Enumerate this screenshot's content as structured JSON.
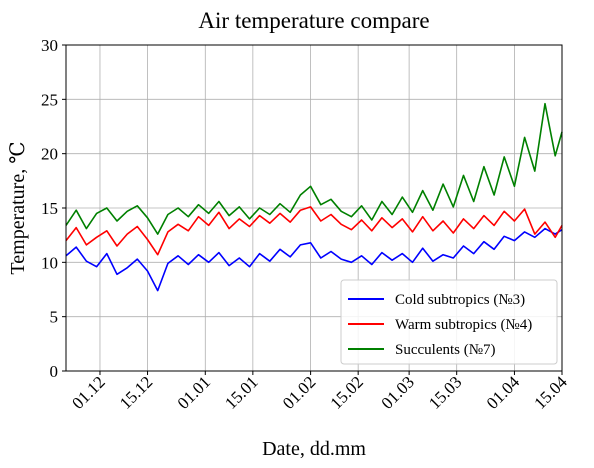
{
  "chart_data": {
    "type": "line",
    "title": "Air temperature compare",
    "xlabel": "Date, dd.mm",
    "ylabel": "Temperature, ℃",
    "x_start": "2023-11-21",
    "x_end": "2024-04-15",
    "xlim": [
      "2023-11-21",
      "2024-04-15"
    ],
    "ylim": [
      0,
      30
    ],
    "x_ticks": [
      {
        "date": "2023-12-01",
        "label": "01.12"
      },
      {
        "date": "2023-12-15",
        "label": "15.12"
      },
      {
        "date": "2024-01-01",
        "label": "01.01"
      },
      {
        "date": "2024-01-15",
        "label": "15.01"
      },
      {
        "date": "2024-02-01",
        "label": "01.02"
      },
      {
        "date": "2024-02-15",
        "label": "15.02"
      },
      {
        "date": "2024-03-01",
        "label": "01.03"
      },
      {
        "date": "2024-03-15",
        "label": "15.03"
      },
      {
        "date": "2024-04-01",
        "label": "01.04"
      },
      {
        "date": "2024-04-15",
        "label": "15.04"
      }
    ],
    "y_ticks": [
      0,
      5,
      10,
      15,
      20,
      25,
      30
    ],
    "grid": true,
    "legend_position": "bottom-right",
    "series": [
      {
        "name": "Cold subtropics (№3)",
        "color": "#0000ff",
        "points": [
          [
            "2023-11-21",
            10.6
          ],
          [
            "2023-11-24",
            11.4
          ],
          [
            "2023-11-27",
            10.1
          ],
          [
            "2023-11-30",
            9.6
          ],
          [
            "2023-12-03",
            10.8
          ],
          [
            "2023-12-06",
            8.9
          ],
          [
            "2023-12-09",
            9.5
          ],
          [
            "2023-12-12",
            10.3
          ],
          [
            "2023-12-15",
            9.2
          ],
          [
            "2023-12-18",
            7.4
          ],
          [
            "2023-12-21",
            9.9
          ],
          [
            "2023-12-24",
            10.6
          ],
          [
            "2023-12-27",
            9.8
          ],
          [
            "2023-12-30",
            10.7
          ],
          [
            "2024-01-02",
            10.0
          ],
          [
            "2024-01-05",
            10.9
          ],
          [
            "2024-01-08",
            9.7
          ],
          [
            "2024-01-11",
            10.4
          ],
          [
            "2024-01-14",
            9.6
          ],
          [
            "2024-01-17",
            10.8
          ],
          [
            "2024-01-20",
            10.1
          ],
          [
            "2024-01-23",
            11.2
          ],
          [
            "2024-01-26",
            10.5
          ],
          [
            "2024-01-29",
            11.6
          ],
          [
            "2024-02-01",
            11.8
          ],
          [
            "2024-02-04",
            10.4
          ],
          [
            "2024-02-07",
            11.0
          ],
          [
            "2024-02-10",
            10.3
          ],
          [
            "2024-02-13",
            10.0
          ],
          [
            "2024-02-16",
            10.6
          ],
          [
            "2024-02-19",
            9.8
          ],
          [
            "2024-02-22",
            10.9
          ],
          [
            "2024-02-25",
            10.2
          ],
          [
            "2024-02-28",
            10.8
          ],
          [
            "2024-03-02",
            10.0
          ],
          [
            "2024-03-05",
            11.3
          ],
          [
            "2024-03-08",
            10.1
          ],
          [
            "2024-03-11",
            10.7
          ],
          [
            "2024-03-14",
            10.4
          ],
          [
            "2024-03-17",
            11.5
          ],
          [
            "2024-03-20",
            10.8
          ],
          [
            "2024-03-23",
            11.9
          ],
          [
            "2024-03-26",
            11.2
          ],
          [
            "2024-03-29",
            12.4
          ],
          [
            "2024-04-01",
            12.0
          ],
          [
            "2024-04-04",
            12.8
          ],
          [
            "2024-04-07",
            12.3
          ],
          [
            "2024-04-10",
            13.1
          ],
          [
            "2024-04-13",
            12.6
          ],
          [
            "2024-04-15",
            13.0
          ]
        ]
      },
      {
        "name": "Warm subtropics (№4)",
        "color": "#ff0000",
        "points": [
          [
            "2023-11-21",
            12.0
          ],
          [
            "2023-11-24",
            13.2
          ],
          [
            "2023-11-27",
            11.6
          ],
          [
            "2023-11-30",
            12.3
          ],
          [
            "2023-12-03",
            12.9
          ],
          [
            "2023-12-06",
            11.5
          ],
          [
            "2023-12-09",
            12.6
          ],
          [
            "2023-12-12",
            13.3
          ],
          [
            "2023-12-15",
            12.1
          ],
          [
            "2023-12-18",
            10.7
          ],
          [
            "2023-12-21",
            12.8
          ],
          [
            "2023-12-24",
            13.5
          ],
          [
            "2023-12-27",
            12.9
          ],
          [
            "2023-12-30",
            14.2
          ],
          [
            "2024-01-02",
            13.4
          ],
          [
            "2024-01-05",
            14.6
          ],
          [
            "2024-01-08",
            13.1
          ],
          [
            "2024-01-11",
            14.0
          ],
          [
            "2024-01-14",
            13.3
          ],
          [
            "2024-01-17",
            14.3
          ],
          [
            "2024-01-20",
            13.6
          ],
          [
            "2024-01-23",
            14.5
          ],
          [
            "2024-01-26",
            13.7
          ],
          [
            "2024-01-29",
            14.8
          ],
          [
            "2024-02-01",
            15.1
          ],
          [
            "2024-02-04",
            13.8
          ],
          [
            "2024-02-07",
            14.4
          ],
          [
            "2024-02-10",
            13.5
          ],
          [
            "2024-02-13",
            13.0
          ],
          [
            "2024-02-16",
            13.9
          ],
          [
            "2024-02-19",
            12.9
          ],
          [
            "2024-02-22",
            14.1
          ],
          [
            "2024-02-25",
            13.2
          ],
          [
            "2024-02-28",
            14.0
          ],
          [
            "2024-03-02",
            12.8
          ],
          [
            "2024-03-05",
            14.2
          ],
          [
            "2024-03-08",
            12.9
          ],
          [
            "2024-03-11",
            13.8
          ],
          [
            "2024-03-14",
            12.7
          ],
          [
            "2024-03-17",
            14.0
          ],
          [
            "2024-03-20",
            13.1
          ],
          [
            "2024-03-23",
            14.3
          ],
          [
            "2024-03-26",
            13.4
          ],
          [
            "2024-03-29",
            14.7
          ],
          [
            "2024-04-01",
            13.8
          ],
          [
            "2024-04-04",
            14.9
          ],
          [
            "2024-04-07",
            12.6
          ],
          [
            "2024-04-10",
            13.7
          ],
          [
            "2024-04-13",
            12.3
          ],
          [
            "2024-04-15",
            13.4
          ]
        ]
      },
      {
        "name": "Succulents (№7)",
        "color": "#008000",
        "points": [
          [
            "2023-11-21",
            13.4
          ],
          [
            "2023-11-24",
            14.8
          ],
          [
            "2023-11-27",
            13.1
          ],
          [
            "2023-11-30",
            14.5
          ],
          [
            "2023-12-03",
            15.0
          ],
          [
            "2023-12-06",
            13.8
          ],
          [
            "2023-12-09",
            14.7
          ],
          [
            "2023-12-12",
            15.2
          ],
          [
            "2023-12-15",
            14.1
          ],
          [
            "2023-12-18",
            12.6
          ],
          [
            "2023-12-21",
            14.4
          ],
          [
            "2023-12-24",
            15.0
          ],
          [
            "2023-12-27",
            14.2
          ],
          [
            "2023-12-30",
            15.3
          ],
          [
            "2024-01-02",
            14.5
          ],
          [
            "2024-01-05",
            15.6
          ],
          [
            "2024-01-08",
            14.3
          ],
          [
            "2024-01-11",
            15.1
          ],
          [
            "2024-01-14",
            14.0
          ],
          [
            "2024-01-17",
            15.0
          ],
          [
            "2024-01-20",
            14.4
          ],
          [
            "2024-01-23",
            15.4
          ],
          [
            "2024-01-26",
            14.6
          ],
          [
            "2024-01-29",
            16.2
          ],
          [
            "2024-02-01",
            17.0
          ],
          [
            "2024-02-04",
            15.3
          ],
          [
            "2024-02-07",
            15.8
          ],
          [
            "2024-02-10",
            14.7
          ],
          [
            "2024-02-13",
            14.2
          ],
          [
            "2024-02-16",
            15.2
          ],
          [
            "2024-02-19",
            13.9
          ],
          [
            "2024-02-22",
            15.6
          ],
          [
            "2024-02-25",
            14.4
          ],
          [
            "2024-02-28",
            16.0
          ],
          [
            "2024-03-02",
            14.6
          ],
          [
            "2024-03-05",
            16.6
          ],
          [
            "2024-03-08",
            14.8
          ],
          [
            "2024-03-11",
            17.2
          ],
          [
            "2024-03-14",
            15.1
          ],
          [
            "2024-03-17",
            18.0
          ],
          [
            "2024-03-20",
            15.6
          ],
          [
            "2024-03-23",
            18.8
          ],
          [
            "2024-03-26",
            16.2
          ],
          [
            "2024-03-29",
            19.7
          ],
          [
            "2024-04-01",
            17.0
          ],
          [
            "2024-04-04",
            21.5
          ],
          [
            "2024-04-07",
            18.4
          ],
          [
            "2024-04-10",
            24.6
          ],
          [
            "2024-04-13",
            19.8
          ],
          [
            "2024-04-15",
            22.0
          ]
        ]
      }
    ]
  }
}
